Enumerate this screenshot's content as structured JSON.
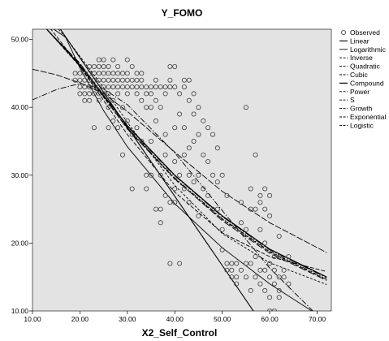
{
  "chart_data": {
    "type": "scatter",
    "title": "Y_FOMO",
    "xlabel": "X2_Self_Control",
    "ylabel": "",
    "xlim": [
      10,
      73
    ],
    "ylim": [
      10,
      51.5
    ],
    "x_ticks": [
      "10.00",
      "20.00",
      "30.00",
      "40.00",
      "50.00",
      "60.00",
      "70.00"
    ],
    "y_ticks": [
      "10.00",
      "20.00",
      "30.00",
      "40.00",
      "50.00"
    ],
    "grid": false,
    "legend_position": "right",
    "legend": [
      "Observed",
      "Linear",
      "Logarithmic",
      "Inverse",
      "Quadratic",
      "Cubic",
      "Compound",
      "Power",
      "S",
      "Growth",
      "Exponential",
      "Logistic"
    ],
    "colors": {
      "plot_background": "#e3e3e3",
      "marker": "#3a3a3a",
      "line": "#000000"
    },
    "observed": [
      [
        19,
        45
      ],
      [
        19,
        44
      ],
      [
        20,
        45
      ],
      [
        20,
        44
      ],
      [
        20,
        43
      ],
      [
        20,
        42
      ],
      [
        21,
        45
      ],
      [
        21,
        44
      ],
      [
        21,
        43
      ],
      [
        21,
        42
      ],
      [
        21,
        41
      ],
      [
        22,
        46
      ],
      [
        22,
        45
      ],
      [
        22,
        44
      ],
      [
        22,
        43
      ],
      [
        22,
        42
      ],
      [
        22,
        41
      ],
      [
        23,
        46
      ],
      [
        23,
        45
      ],
      [
        23,
        44
      ],
      [
        23,
        43
      ],
      [
        23,
        42
      ],
      [
        23,
        37
      ],
      [
        24,
        47
      ],
      [
        24,
        46
      ],
      [
        24,
        45
      ],
      [
        24,
        44
      ],
      [
        24,
        43
      ],
      [
        24,
        42
      ],
      [
        24,
        41
      ],
      [
        25,
        47
      ],
      [
        25,
        46
      ],
      [
        25,
        45
      ],
      [
        25,
        44
      ],
      [
        25,
        43
      ],
      [
        25,
        42
      ],
      [
        26,
        46
      ],
      [
        26,
        45
      ],
      [
        26,
        44
      ],
      [
        26,
        43
      ],
      [
        26,
        42
      ],
      [
        26,
        40
      ],
      [
        26,
        37
      ],
      [
        27,
        47
      ],
      [
        27,
        45
      ],
      [
        27,
        44
      ],
      [
        27,
        43
      ],
      [
        27,
        41
      ],
      [
        27,
        38
      ],
      [
        28,
        46
      ],
      [
        28,
        45
      ],
      [
        28,
        44
      ],
      [
        28,
        43
      ],
      [
        28,
        42
      ],
      [
        28,
        37
      ],
      [
        29,
        45
      ],
      [
        29,
        44
      ],
      [
        29,
        43
      ],
      [
        29,
        40
      ],
      [
        29,
        33
      ],
      [
        30,
        47
      ],
      [
        30,
        45
      ],
      [
        30,
        44
      ],
      [
        30,
        43
      ],
      [
        30,
        42
      ],
      [
        30,
        38
      ],
      [
        31,
        46
      ],
      [
        31,
        44
      ],
      [
        31,
        43
      ],
      [
        31,
        36
      ],
      [
        31,
        28
      ],
      [
        32,
        45
      ],
      [
        32,
        44
      ],
      [
        32,
        43
      ],
      [
        32,
        42
      ],
      [
        32,
        37
      ],
      [
        33,
        45
      ],
      [
        33,
        44
      ],
      [
        33,
        43
      ],
      [
        33,
        41
      ],
      [
        33,
        35
      ],
      [
        34,
        43
      ],
      [
        34,
        42
      ],
      [
        34,
        40
      ],
      [
        34,
        30
      ],
      [
        34,
        28
      ],
      [
        35,
        43
      ],
      [
        35,
        42
      ],
      [
        35,
        40
      ],
      [
        35,
        35
      ],
      [
        35,
        30
      ],
      [
        36,
        44
      ],
      [
        36,
        43
      ],
      [
        36,
        41
      ],
      [
        36,
        38
      ],
      [
        36,
        25
      ],
      [
        37,
        43
      ],
      [
        37,
        40
      ],
      [
        37,
        30
      ],
      [
        37,
        25
      ],
      [
        37,
        23
      ],
      [
        38,
        43
      ],
      [
        38,
        42
      ],
      [
        38,
        36
      ],
      [
        38,
        33
      ],
      [
        38,
        27
      ],
      [
        39,
        46
      ],
      [
        39,
        44
      ],
      [
        39,
        43
      ],
      [
        39,
        17
      ],
      [
        39,
        26
      ],
      [
        40,
        46
      ],
      [
        40,
        43
      ],
      [
        40,
        37
      ],
      [
        40,
        32
      ],
      [
        40,
        28
      ],
      [
        40,
        26
      ],
      [
        41,
        42
      ],
      [
        41,
        39
      ],
      [
        41,
        30
      ],
      [
        41,
        17
      ],
      [
        42,
        44
      ],
      [
        42,
        43
      ],
      [
        42,
        37
      ],
      [
        42,
        33
      ],
      [
        42,
        28
      ],
      [
        43,
        44
      ],
      [
        43,
        41
      ],
      [
        43,
        34
      ],
      [
        43,
        30
      ],
      [
        43,
        26
      ],
      [
        44,
        42
      ],
      [
        44,
        39
      ],
      [
        44,
        35
      ],
      [
        44,
        29
      ],
      [
        45,
        40
      ],
      [
        45,
        36
      ],
      [
        45,
        30
      ],
      [
        45,
        24
      ],
      [
        46,
        38
      ],
      [
        46,
        33
      ],
      [
        46,
        28
      ],
      [
        47,
        37
      ],
      [
        47,
        32
      ],
      [
        47,
        27
      ],
      [
        48,
        36
      ],
      [
        48,
        30
      ],
      [
        48,
        25
      ],
      [
        49,
        34
      ],
      [
        49,
        29
      ],
      [
        49,
        25
      ],
      [
        50,
        30
      ],
      [
        50,
        22
      ],
      [
        50,
        19
      ],
      [
        51,
        27
      ],
      [
        51,
        17
      ],
      [
        51,
        16
      ],
      [
        52,
        17
      ],
      [
        52,
        16
      ],
      [
        52,
        15
      ],
      [
        53,
        17
      ],
      [
        53,
        15
      ],
      [
        53,
        14
      ],
      [
        54,
        26
      ],
      [
        54,
        23
      ],
      [
        54,
        16
      ],
      [
        55,
        40
      ],
      [
        55,
        22
      ],
      [
        55,
        17
      ],
      [
        55,
        15
      ],
      [
        56,
        28
      ],
      [
        56,
        25
      ],
      [
        56,
        17
      ],
      [
        56,
        13
      ],
      [
        57,
        33
      ],
      [
        57,
        25
      ],
      [
        57,
        18
      ],
      [
        57,
        15
      ],
      [
        58,
        27
      ],
      [
        58,
        26
      ],
      [
        58,
        22
      ],
      [
        58,
        16
      ],
      [
        58,
        14
      ],
      [
        59,
        28
      ],
      [
        59,
        25
      ],
      [
        59,
        20
      ],
      [
        59,
        16
      ],
      [
        59,
        13
      ],
      [
        60,
        27
      ],
      [
        60,
        24
      ],
      [
        60,
        17
      ],
      [
        60,
        15
      ],
      [
        60,
        12
      ],
      [
        60,
        10
      ],
      [
        61,
        18
      ],
      [
        61,
        16
      ],
      [
        61,
        14
      ],
      [
        61,
        10
      ],
      [
        62,
        21
      ],
      [
        62,
        18
      ],
      [
        62,
        15
      ],
      [
        62,
        13
      ],
      [
        62,
        12
      ],
      [
        63,
        16
      ],
      [
        63,
        15
      ],
      [
        64,
        18
      ],
      [
        64,
        14
      ]
    ],
    "fitted_curves": [
      {
        "name": "Linear",
        "points": [
          [
            10,
            57.5
          ],
          [
            20,
            47.3
          ],
          [
            30,
            37.1
          ],
          [
            40,
            26.9
          ],
          [
            50,
            16.7
          ],
          [
            60,
            6.5
          ]
        ]
      },
      {
        "name": "Logarithmic",
        "points": [
          [
            14.5,
            51.5
          ],
          [
            17,
            50.3
          ],
          [
            20,
            45.8
          ],
          [
            25,
            39.5
          ],
          [
            30,
            34.2
          ],
          [
            40,
            25.8
          ],
          [
            50,
            19.3
          ],
          [
            60,
            14.0
          ],
          [
            70,
            9.5
          ],
          [
            72,
            8.7
          ]
        ]
      },
      {
        "name": "Inverse",
        "points": [
          [
            10,
            45.6
          ],
          [
            15,
            44.8
          ],
          [
            20,
            43.6
          ],
          [
            25,
            42.0
          ],
          [
            30,
            39.4
          ],
          [
            40,
            33.4
          ],
          [
            50,
            27.6
          ],
          [
            60,
            23.0
          ],
          [
            72,
            18.6
          ]
        ]
      },
      {
        "name": "Quadratic",
        "points": [
          [
            10,
            41.1
          ],
          [
            15,
            42.6
          ],
          [
            20,
            43.5
          ],
          [
            25,
            42.7
          ],
          [
            30,
            40.4
          ],
          [
            40,
            33.3
          ],
          [
            50,
            24.8
          ],
          [
            60,
            16.3
          ],
          [
            72,
            8.0
          ]
        ]
      },
      {
        "name": "Cubic",
        "points": [
          [
            15.5,
            51.5
          ],
          [
            17,
            50.3
          ],
          [
            20,
            47.5
          ],
          [
            25,
            42.9
          ],
          [
            30,
            37.8
          ],
          [
            40,
            28.5
          ],
          [
            50,
            21.4
          ],
          [
            60,
            17.1
          ],
          [
            72,
            13.9
          ]
        ]
      },
      {
        "name": "Compound",
        "points": [
          [
            13,
            51.5
          ],
          [
            20,
            46.2
          ],
          [
            30,
            37.3
          ],
          [
            40,
            30.0
          ],
          [
            50,
            24.0
          ],
          [
            60,
            19.1
          ],
          [
            72,
            15.0
          ]
        ]
      },
      {
        "name": "Power",
        "points": [
          [
            13,
            51.5
          ],
          [
            20,
            46.5
          ],
          [
            30,
            36.8
          ],
          [
            40,
            29.5
          ],
          [
            50,
            23.3
          ],
          [
            60,
            18.5
          ],
          [
            72,
            14.5
          ]
        ]
      },
      {
        "name": "S",
        "points": [
          [
            10,
            55.0
          ],
          [
            20,
            46.0
          ],
          [
            30,
            36.0
          ],
          [
            40,
            27.5
          ],
          [
            50,
            21.5
          ],
          [
            60,
            18.0
          ],
          [
            72,
            15.8
          ]
        ]
      },
      {
        "name": "Growth",
        "points": [
          [
            13,
            51.5
          ],
          [
            20,
            46.1
          ],
          [
            30,
            37.0
          ],
          [
            40,
            29.6
          ],
          [
            50,
            23.6
          ],
          [
            60,
            18.8
          ],
          [
            72,
            14.7
          ]
        ]
      },
      {
        "name": "Exponential",
        "points": [
          [
            13,
            51.5
          ],
          [
            20,
            46.4
          ],
          [
            30,
            37.2
          ],
          [
            40,
            29.9
          ],
          [
            50,
            23.9
          ],
          [
            60,
            19.0
          ],
          [
            72,
            14.9
          ]
        ]
      },
      {
        "name": "Logistic",
        "points": [
          [
            13,
            51.5
          ],
          [
            20,
            46.0
          ],
          [
            30,
            36.9
          ],
          [
            40,
            29.4
          ],
          [
            50,
            23.5
          ],
          [
            60,
            18.7
          ],
          [
            72,
            14.6
          ]
        ]
      }
    ]
  }
}
